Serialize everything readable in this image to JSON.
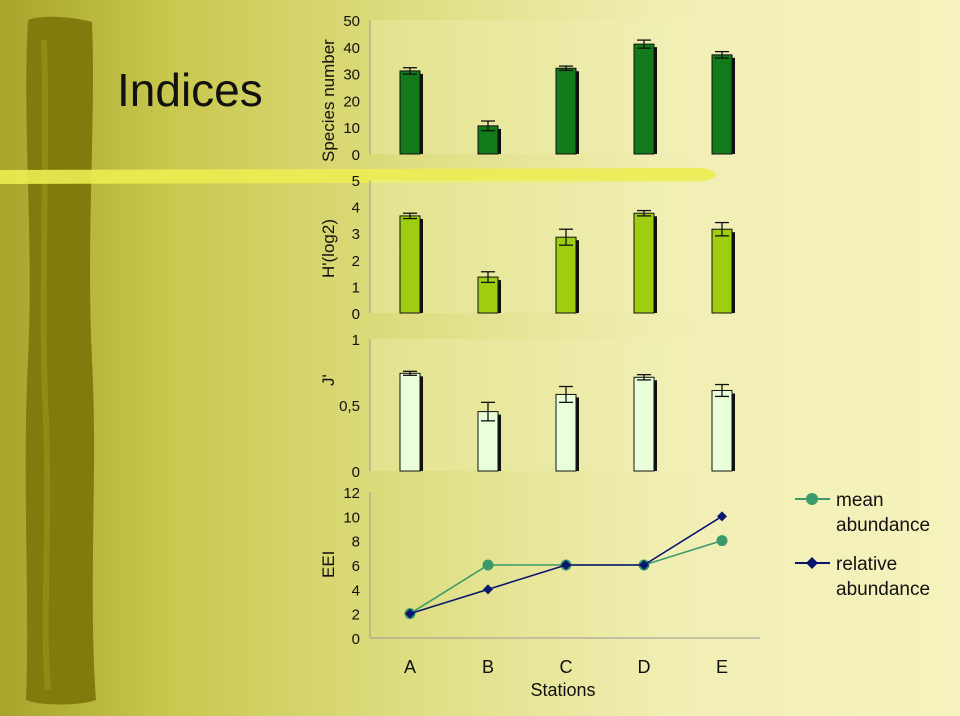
{
  "slide": {
    "title": "Indices",
    "colors": {
      "stripe": "#7f7b0c",
      "divider": "#ecec52",
      "bar_species": "#127a1a",
      "bar_h": "#9fce10",
      "bar_j": "#e9ffd9",
      "mean_line": "#3a9a6a",
      "relative_line": "#0a1570"
    }
  },
  "chart_data": [
    {
      "type": "bar",
      "ylabel": "Species number",
      "categories": [
        "A",
        "B",
        "C",
        "D",
        "E"
      ],
      "values": [
        31,
        10.5,
        32,
        41,
        37
      ],
      "errors": [
        1.2,
        1.8,
        0.8,
        1.5,
        1.2
      ],
      "ylim": [
        0,
        50
      ],
      "yticks": [
        "0",
        "10",
        "20",
        "30",
        "40",
        "50"
      ],
      "color": "#127a1a"
    },
    {
      "type": "bar",
      "ylabel": "H'(log2)",
      "categories": [
        "A",
        "B",
        "C",
        "D",
        "E"
      ],
      "values": [
        3.65,
        1.35,
        2.85,
        3.75,
        3.15
      ],
      "errors": [
        0.1,
        0.2,
        0.3,
        0.1,
        0.25
      ],
      "ylim": [
        0,
        5
      ],
      "yticks": [
        "0",
        "1",
        "2",
        "3",
        "4",
        "5"
      ],
      "color": "#9fce10"
    },
    {
      "type": "bar",
      "ylabel": "J'",
      "categories": [
        "A",
        "B",
        "C",
        "D",
        "E"
      ],
      "values": [
        0.74,
        0.45,
        0.58,
        0.71,
        0.61
      ],
      "errors": [
        0.015,
        0.07,
        0.06,
        0.02,
        0.045
      ],
      "ylim": [
        0,
        1
      ],
      "yticks": [
        "0",
        "0,5",
        "1"
      ],
      "color": "#e9ffd9"
    },
    {
      "type": "line",
      "ylabel": "EEI",
      "xlabel": "Stations",
      "categories": [
        "A",
        "B",
        "C",
        "D",
        "E"
      ],
      "ylim": [
        0,
        12
      ],
      "yticks": [
        "0",
        "2",
        "4",
        "6",
        "8",
        "10",
        "12"
      ],
      "series": [
        {
          "name": "mean abundance",
          "values": [
            2,
            6,
            6,
            6,
            8
          ],
          "color": "#3a9a6a",
          "marker": "circle"
        },
        {
          "name": "relative abundance",
          "values": [
            2,
            4,
            6,
            6,
            10
          ],
          "color": "#0a1570",
          "marker": "diamond"
        }
      ],
      "legend": "right"
    }
  ]
}
